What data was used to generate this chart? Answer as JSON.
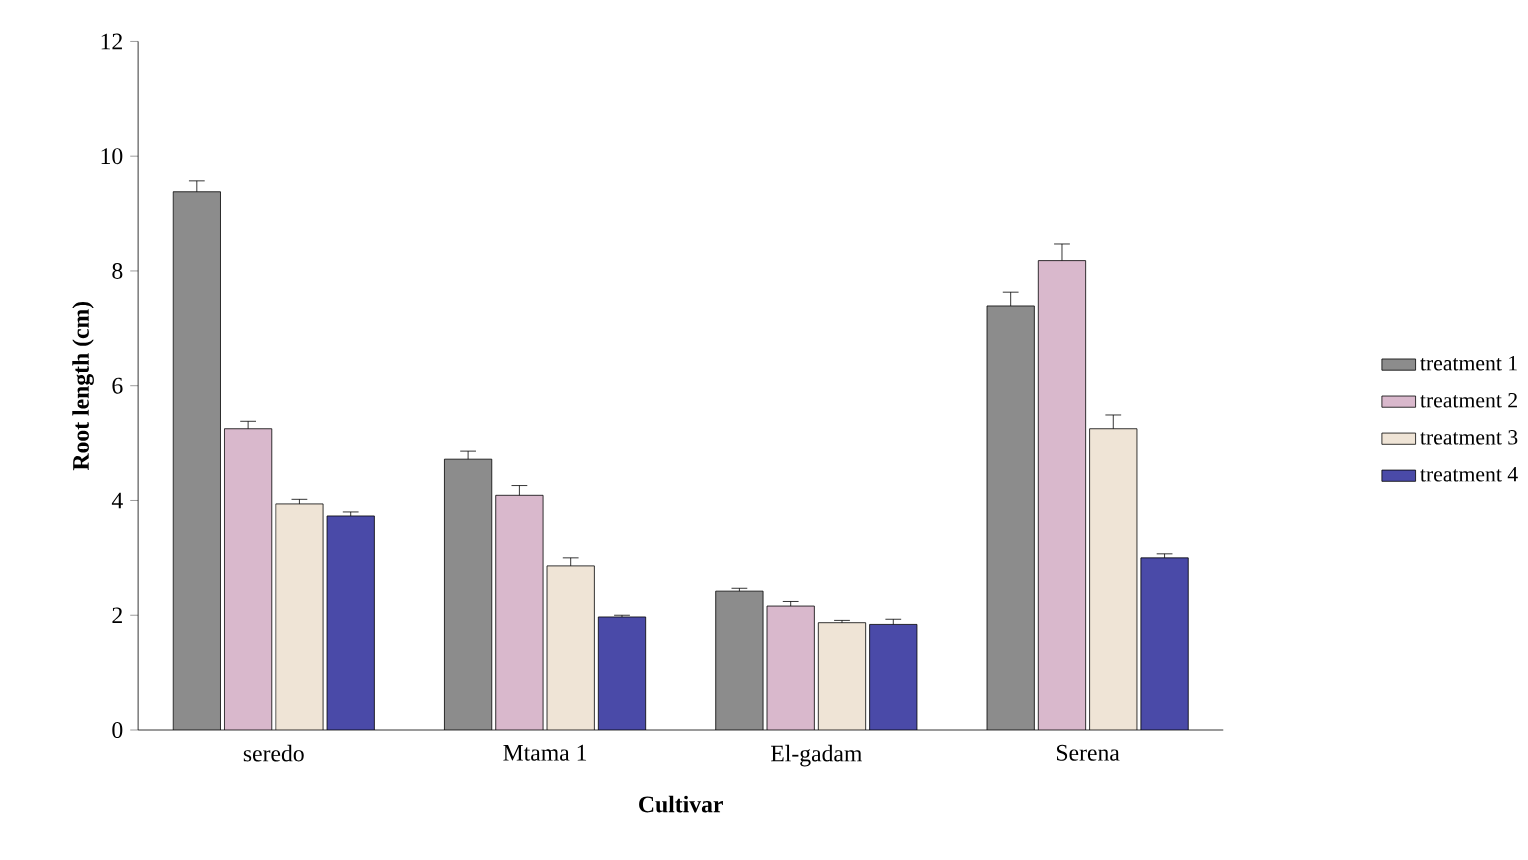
{
  "chart_data": {
    "type": "bar",
    "xlabel": "Cultivar",
    "ylabel": "Root length (cm)",
    "categories": [
      "seredo",
      "Mtama 1",
      "El-gadam",
      "Serena"
    ],
    "series": [
      {
        "name": "treatment 1",
        "color": "#8c8c8c",
        "values": [
          9.38,
          4.72,
          2.42,
          7.39
        ],
        "errors": [
          0.19,
          0.14,
          0.05,
          0.24
        ]
      },
      {
        "name": "treatment 2",
        "color": "#d9b8cc",
        "values": [
          5.25,
          4.09,
          2.16,
          8.18
        ],
        "errors": [
          0.13,
          0.17,
          0.08,
          0.29
        ]
      },
      {
        "name": "treatment 3",
        "color": "#efe4d6",
        "values": [
          3.94,
          2.86,
          1.87,
          5.25
        ],
        "errors": [
          0.08,
          0.14,
          0.04,
          0.24
        ]
      },
      {
        "name": "treatment 4",
        "color": "#4a4aa8",
        "values": [
          3.73,
          1.97,
          1.84,
          3.0
        ],
        "errors": [
          0.07,
          0.03,
          0.09,
          0.07
        ]
      }
    ],
    "ylim": [
      0,
      12
    ],
    "yticks": [
      0,
      2,
      4,
      6,
      8,
      10,
      12
    ],
    "grid": false,
    "legend": "right"
  }
}
